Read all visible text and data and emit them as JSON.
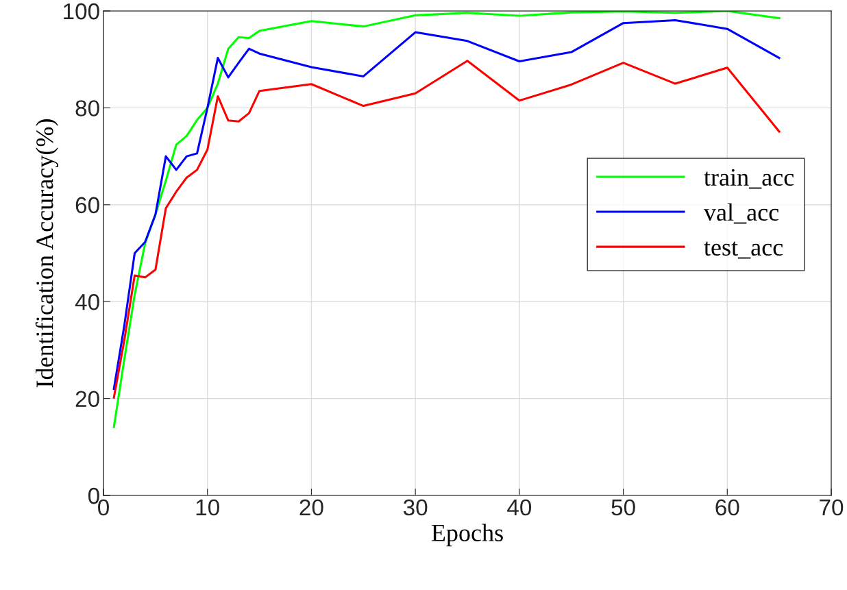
{
  "chart_data": {
    "type": "line",
    "xlabel": "Epochs",
    "ylabel": "Identification Accuracy(%)",
    "x": [
      1,
      2,
      3,
      4,
      5,
      6,
      7,
      8,
      9,
      10,
      11,
      12,
      13,
      14,
      15,
      20,
      25,
      30,
      35,
      40,
      45,
      50,
      55,
      60,
      65
    ],
    "series": [
      {
        "name": "train_acc",
        "color": "#00ff00",
        "values": [
          14.1,
          28,
          41.4,
          52,
          58,
          65,
          72.4,
          74.2,
          77.5,
          80,
          85,
          92.2,
          94.6,
          94.4,
          95.9,
          97.9,
          96.8,
          99.1,
          99.6,
          99.0,
          99.7,
          99.9,
          99.6,
          100,
          98.5
        ]
      },
      {
        "name": "val_acc",
        "color": "#0000ff",
        "values": [
          22,
          35,
          50,
          52.3,
          58,
          70,
          67.2,
          70,
          70.6,
          80,
          90.3,
          86.3,
          89.3,
          92.2,
          91.2,
          88.4,
          86.5,
          95.6,
          93.8,
          89.6,
          91.5,
          97.5,
          98.1,
          96.3,
          90.3
        ]
      },
      {
        "name": "test_acc",
        "color": "#ff0000",
        "values": [
          20.2,
          32,
          45.4,
          45,
          46.6,
          59.3,
          62.7,
          65.6,
          67.2,
          71.4,
          82.4,
          77.4,
          77.2,
          78.9,
          83.5,
          84.9,
          80.4,
          83,
          89.7,
          81.5,
          84.8,
          89.3,
          85,
          88.3,
          75.1
        ]
      }
    ],
    "xlim": [
      0,
      70
    ],
    "xticks": [
      0,
      10,
      20,
      30,
      40,
      50,
      60,
      70
    ],
    "ylim": [
      0,
      100
    ],
    "yticks": [
      0,
      20,
      40,
      60,
      80,
      100
    ],
    "grid": true,
    "legend": "right",
    "marker": "none",
    "line_style": "solid"
  }
}
